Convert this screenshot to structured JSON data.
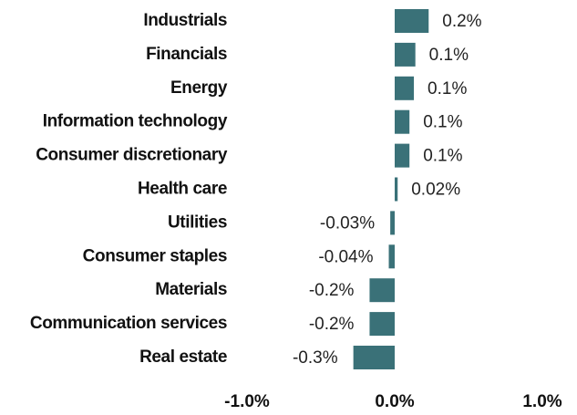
{
  "chart_data": {
    "type": "bar",
    "orientation": "horizontal",
    "categories": [
      "Industrials",
      "Financials",
      "Energy",
      "Information technology",
      "Consumer discretionary",
      "Health care",
      "Utilities",
      "Consumer staples",
      "Materials",
      "Communication services",
      "Real estate"
    ],
    "values": [
      0.23,
      0.14,
      0.13,
      0.1,
      0.1,
      0.02,
      -0.03,
      -0.04,
      -0.17,
      -0.17,
      -0.28
    ],
    "value_labels": [
      "0.2%",
      "0.1%",
      "0.1%",
      "0.1%",
      "0.1%",
      "0.02%",
      "-0.03%",
      "-0.04%",
      "-0.2%",
      "-0.2%",
      "-0.3%"
    ],
    "color": "#3a7178",
    "xlim": [
      -1.0,
      1.0
    ],
    "xticks": [
      {
        "value": -1.0,
        "label": "-1.0%"
      },
      {
        "value": 0.0,
        "label": "0.0%"
      },
      {
        "value": 1.0,
        "label": "1.0%"
      }
    ],
    "grid": false
  }
}
